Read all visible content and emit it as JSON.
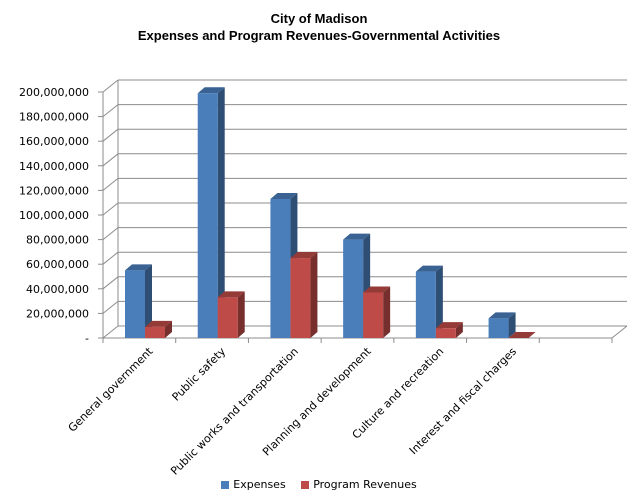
{
  "chart_data": {
    "type": "bar",
    "title": "City of Madison",
    "subtitle": "Expenses and Program Revenues-Governmental Activities",
    "categories": [
      "General government",
      "Public safety",
      "Public works and transportation",
      "Planning and development",
      "Culture and recreation",
      "Interest and fiscal charges"
    ],
    "series": [
      {
        "name": "Expenses",
        "values": [
          55000000,
          199000000,
          113000000,
          80000000,
          54000000,
          16000000
        ]
      },
      {
        "name": "Program Revenues",
        "values": [
          9000000,
          33000000,
          65000000,
          37000000,
          8000000,
          0
        ]
      }
    ],
    "ylim": [
      0,
      200000000
    ],
    "yticks": [
      0,
      20000000,
      40000000,
      60000000,
      80000000,
      100000000,
      120000000,
      140000000,
      160000000,
      180000000,
      200000000
    ],
    "ytick_labels": [
      "-",
      "20,000,000",
      "40,000,000",
      "60,000,000",
      "80,000,000",
      "100,000,000",
      "120,000,000",
      "140,000,000",
      "160,000,000",
      "180,000,000",
      "200,000,000"
    ],
    "grid": true,
    "legend_position": "bottom",
    "colors": {
      "Expenses": "#4a7ebb",
      "Program Revenues": "#be4b48"
    }
  }
}
